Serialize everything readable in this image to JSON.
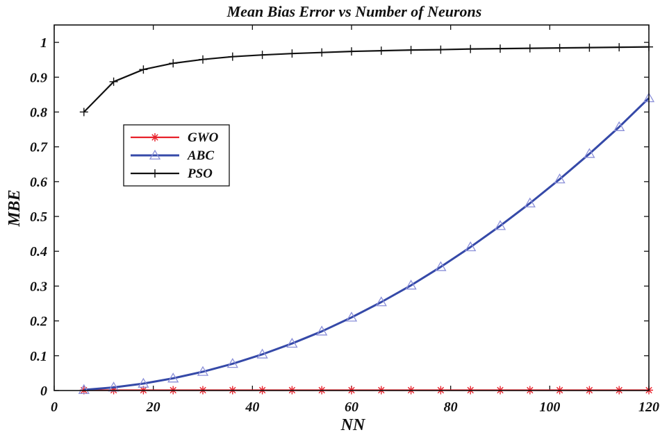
{
  "chart_data": {
    "type": "line",
    "title": "Mean Bias Error vs Number of Neurons",
    "xlabel": "NN",
    "ylabel": "MBE",
    "xlim": [
      0,
      120
    ],
    "ylim": [
      0,
      1.05
    ],
    "xticks": [
      0,
      20,
      40,
      60,
      80,
      100,
      120
    ],
    "yticks": [
      0,
      0.1,
      0.2,
      0.3,
      0.4,
      0.5,
      0.6,
      0.7,
      0.8,
      0.9,
      1
    ],
    "ytick_labels": [
      "0",
      "0.1",
      "0.2",
      "0.3",
      "0.4",
      "0.5",
      "0.6",
      "0.7",
      "0.8",
      "0.9",
      "1"
    ],
    "grid": false,
    "legend_position": "upper-left",
    "x": [
      6,
      12,
      18,
      24,
      30,
      36,
      42,
      48,
      54,
      60,
      66,
      72,
      78,
      84,
      90,
      96,
      102,
      108,
      114,
      120
    ],
    "series": [
      {
        "name": "GWO",
        "color": "#e8202a",
        "marker": "asterisk",
        "values": [
          0.001,
          0.001,
          0.001,
          0.001,
          0.001,
          0.001,
          0.001,
          0.001,
          0.001,
          0.001,
          0.001,
          0.001,
          0.001,
          0.001,
          0.001,
          0.001,
          0.001,
          0.001,
          0.001,
          0.001
        ]
      },
      {
        "name": "ABC",
        "color": "#3549a8",
        "marker": "triangle",
        "values": [
          0.002,
          0.009,
          0.02,
          0.035,
          0.054,
          0.077,
          0.104,
          0.135,
          0.17,
          0.21,
          0.254,
          0.302,
          0.355,
          0.412,
          0.473,
          0.538,
          0.607,
          0.68,
          0.757,
          0.84
        ]
      },
      {
        "name": "PSO",
        "color": "#111111",
        "marker": "plus",
        "values": [
          0.8,
          0.887,
          0.922,
          0.94,
          0.951,
          0.959,
          0.964,
          0.968,
          0.971,
          0.974,
          0.976,
          0.978,
          0.979,
          0.981,
          0.982,
          0.983,
          0.984,
          0.985,
          0.986,
          0.987
        ]
      }
    ]
  }
}
